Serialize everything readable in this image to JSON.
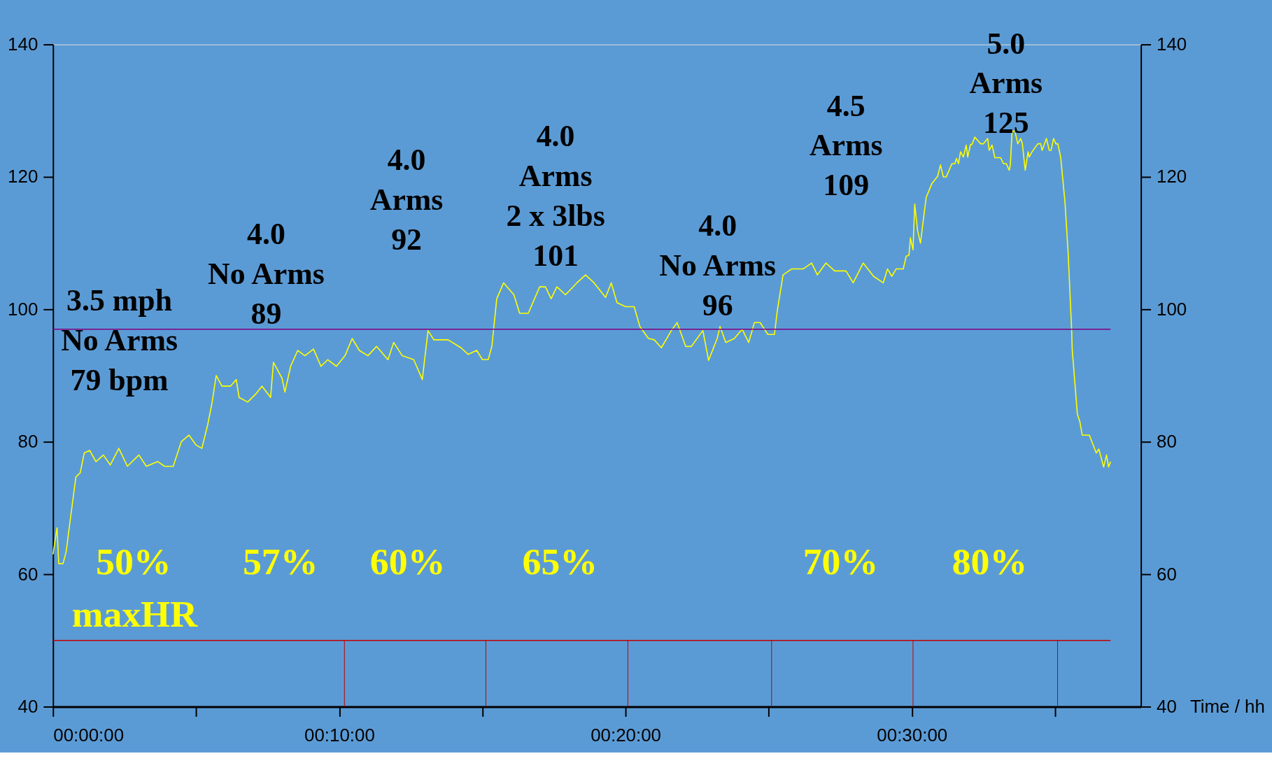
{
  "chart_data": {
    "type": "line",
    "xlabel": "Time / hh",
    "xlim": [
      0,
      38
    ],
    "xticks": [
      {
        "value": 0,
        "label": "00:00:00"
      },
      {
        "value": 5,
        "label": null
      },
      {
        "value": 10,
        "label": "00:10:00"
      },
      {
        "value": 15,
        "label": null
      },
      {
        "value": 20,
        "label": "00:20:00"
      },
      {
        "value": 25,
        "label": null
      },
      {
        "value": 30,
        "label": "00:30:00"
      },
      {
        "value": 35,
        "label": null
      }
    ],
    "ylim": [
      40,
      140
    ],
    "yticks": [
      40,
      60,
      80,
      100,
      120,
      140
    ],
    "y2lim": [
      40,
      140
    ],
    "y2ticks": [
      40,
      60,
      80,
      100,
      120,
      140
    ],
    "grid": false,
    "legend": false,
    "marker": "none",
    "line_style": "solid",
    "series": [
      {
        "color": "#ffff00",
        "x": [
          0,
          0.14,
          0.2,
          0.35,
          0.46,
          0.62,
          0.8,
          0.95,
          1.09,
          1.28,
          1.5,
          1.76,
          2.0,
          2.3,
          2.6,
          3.0,
          3.26,
          3.66,
          3.9,
          4.2,
          4.48,
          4.75,
          5.0,
          5.2,
          5.4,
          5.56,
          5.7,
          5.9,
          6.2,
          6.4,
          6.5,
          6.8,
          7.1,
          7.3,
          7.6,
          7.7,
          8.0,
          8.1,
          8.3,
          8.55,
          8.8,
          9.1,
          9.36,
          9.6,
          9.9,
          10.2,
          10.45,
          10.7,
          11.0,
          11.3,
          11.7,
          11.9,
          12.2,
          12.6,
          12.9,
          13.1,
          13.3,
          13.8,
          14.25,
          14.5,
          14.8,
          15.0,
          15.2,
          15.33,
          15.5,
          15.74,
          16.1,
          16.3,
          16.6,
          17.0,
          17.2,
          17.4,
          17.6,
          17.9,
          18.3,
          18.6,
          18.9,
          19.3,
          19.5,
          19.7,
          20.0,
          20.3,
          20.5,
          20.8,
          21.0,
          21.25,
          21.6,
          21.8,
          22.1,
          22.3,
          22.7,
          22.9,
          23.2,
          23.3,
          23.5,
          23.8,
          24.07,
          24.3,
          24.5,
          24.7,
          24.97,
          25.2,
          25.3,
          25.5,
          25.8,
          26.2,
          26.5,
          26.7,
          27.0,
          27.3,
          27.7,
          27.95,
          28.3,
          28.66,
          29.0,
          29.15,
          29.3,
          29.45,
          29.7,
          29.8,
          29.9,
          29.95,
          30.04,
          30.1,
          30.2,
          30.3,
          30.4,
          30.5,
          30.7,
          30.9,
          31.0,
          31.1,
          31.2,
          31.4,
          31.5,
          31.56,
          31.63,
          31.7,
          31.8,
          31.9,
          31.95,
          32.05,
          32.1,
          32.2,
          32.4,
          32.5,
          32.65,
          32.7,
          32.8,
          32.9,
          33.1,
          33.2,
          33.3,
          33.4,
          33.44,
          33.5,
          33.6,
          33.7,
          33.8,
          33.86,
          33.96,
          34.06,
          34.1,
          34.2,
          34.4,
          34.5,
          34.55,
          34.7,
          34.8,
          34.86,
          34.95,
          35.03,
          35.1,
          35.2,
          35.35,
          35.46,
          35.58,
          35.6,
          35.78,
          35.87,
          35.95,
          36.2,
          36.44,
          36.53,
          36.7,
          36.8,
          36.87,
          36.94
        ],
        "values": [
          63,
          67,
          61.6,
          61.6,
          63.4,
          68.8,
          74.7,
          75.3,
          78.3,
          78.7,
          77,
          78,
          76.5,
          79,
          76.3,
          78,
          76.3,
          77,
          76.3,
          76.3,
          80,
          81,
          79.5,
          79,
          82.5,
          86,
          90,
          88.4,
          88.4,
          89.4,
          86.7,
          86,
          87.3,
          88.4,
          86.7,
          92,
          89.6,
          87.5,
          91.4,
          93.8,
          93,
          94,
          91.4,
          92.4,
          91.4,
          93,
          95.6,
          93.8,
          93,
          94.4,
          92.4,
          95,
          93,
          92.4,
          89.4,
          96.8,
          95.4,
          95.4,
          94.2,
          93.2,
          93.8,
          92.4,
          92.4,
          94.4,
          101.6,
          104,
          102.2,
          99.4,
          99.4,
          103.4,
          103.4,
          101.6,
          103.4,
          102.2,
          104,
          105.2,
          104,
          101.8,
          104,
          101,
          100.4,
          100.4,
          97.4,
          95.6,
          95.4,
          94.2,
          96.8,
          98,
          94.4,
          94.4,
          96.8,
          92.3,
          95.6,
          97.4,
          95,
          95.6,
          97,
          95,
          98,
          98,
          96.2,
          96.2,
          99.8,
          105.2,
          106.1,
          106.1,
          107,
          105.2,
          107,
          105.8,
          105.8,
          104,
          107,
          105,
          104,
          106.1,
          105,
          106.1,
          106.1,
          108,
          108.2,
          110.8,
          109,
          115.9,
          111.9,
          110,
          113.5,
          116.9,
          119,
          120.1,
          121.8,
          120,
          120,
          122,
          122,
          122.8,
          122,
          123.8,
          123,
          124.8,
          123,
          124.9,
          124.9,
          126,
          125,
          125,
          125.8,
          124,
          124.8,
          122.9,
          122.9,
          122,
          122,
          121,
          121.8,
          126.9,
          126.9,
          125,
          125.8,
          125,
          121,
          123.8,
          123,
          123.8,
          125,
          125,
          124,
          125.8,
          124,
          124,
          125.8,
          125,
          125,
          122.9,
          116.1,
          108.4,
          97,
          94,
          84.2,
          83,
          81,
          81,
          78.3,
          78.9,
          76.2,
          78,
          76.2,
          77
        ]
      }
    ],
    "ref_lines": [
      {
        "axis": "y",
        "value": 97,
        "color": "#800080"
      },
      {
        "axis": "y",
        "value": 50,
        "color": "#c00000"
      },
      {
        "axis": "x",
        "value": 10.18,
        "color": "#c00000"
      },
      {
        "axis": "x",
        "value": 15.12,
        "color": "#c00000"
      },
      {
        "axis": "x",
        "value": 20.08,
        "color": "#c00000"
      },
      {
        "axis": "x",
        "value": 25.1,
        "color": "#c00000"
      },
      {
        "axis": "x",
        "value": 30.04,
        "color": "#c00000"
      },
      {
        "axis": "x",
        "value": 35.09,
        "color": "#c00000"
      }
    ],
    "annotations": [
      "3.5 mph\nNo Arms\n79 bpm",
      "4.0\nNo Arms\n89",
      "4.0\nArms\n92",
      "4.0\nArms\n2 x 3lbs\n101",
      "4.0\nNo Arms\n96",
      "4.5\nArms\n109",
      "5.0\nArms\n125",
      "50%",
      "57%",
      "60%",
      "65%",
      "70%",
      "80%",
      "maxHR"
    ]
  }
}
